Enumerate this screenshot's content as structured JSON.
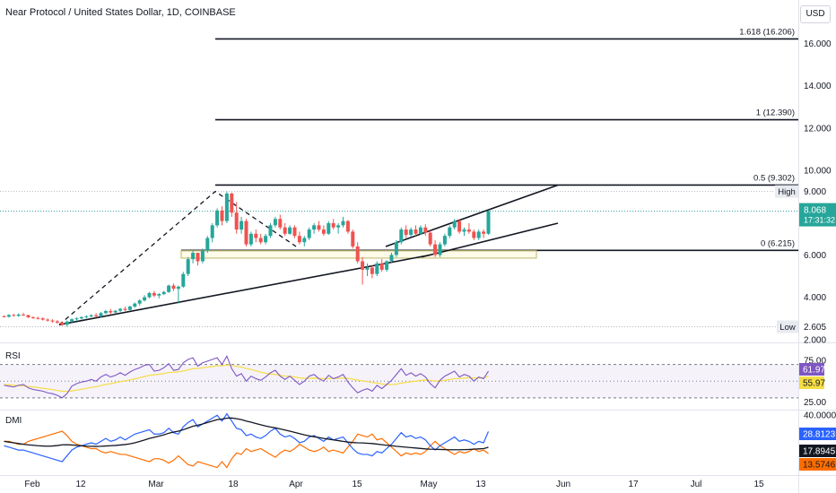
{
  "header": {
    "title": "Near Protocol / United States Dollar, 1D, COINBASE",
    "currency": "USD"
  },
  "colors": {
    "up": "#26a69a",
    "down": "#ef5350",
    "price_axis_bg": "#26a69a",
    "rsi_line": "#7e57c2",
    "rsi_ma": "#f5dd43",
    "dmi_plus": "#2962ff",
    "dmi_minus": "#ff6d00",
    "adx": "#131722"
  },
  "chart_data": [
    {
      "type": "candlestick",
      "title": "Near Protocol / United States Dollar, 1D, COINBASE",
      "xlabel": "",
      "ylabel": "",
      "x_ticks": [
        "Feb",
        "12",
        "Mar",
        "18",
        "Apr",
        "15",
        "May",
        "13",
        "Jun",
        "17",
        "Jul",
        "15"
      ],
      "y_ticks": [
        "16.000",
        "14.000",
        "12.000",
        "10.000",
        "6.000",
        "4.000",
        "2.000"
      ],
      "ylim": [
        1.95,
        17.2
      ],
      "last_price": "8.068",
      "countdown": "17:31:32",
      "high_label": "High",
      "high_value": "9.000",
      "low_label": "Low",
      "low_value": "2.605",
      "fib_levels": [
        {
          "label": "1.618 (16.206)",
          "value": 16.206
        },
        {
          "label": "1 (12.390)",
          "value": 12.39
        },
        {
          "label": "0.5 (9.302)",
          "value": 9.302
        },
        {
          "label": "0 (6.215)",
          "value": 6.215
        }
      ],
      "candles": [
        [
          3.1,
          3.14,
          3.05,
          3.08
        ],
        [
          3.08,
          3.2,
          3.04,
          3.16
        ],
        [
          3.16,
          3.22,
          3.1,
          3.12
        ],
        [
          3.12,
          3.24,
          3.08,
          3.18
        ],
        [
          3.18,
          3.26,
          3.12,
          3.15
        ],
        [
          3.15,
          3.18,
          3.02,
          3.05
        ],
        [
          3.05,
          3.1,
          2.98,
          3.02
        ],
        [
          3.02,
          3.08,
          2.95,
          3.0
        ],
        [
          3.0,
          3.05,
          2.9,
          2.94
        ],
        [
          2.94,
          3.0,
          2.85,
          2.9
        ],
        [
          2.9,
          2.96,
          2.8,
          2.86
        ],
        [
          2.86,
          2.92,
          2.75,
          2.8
        ],
        [
          2.8,
          2.86,
          2.65,
          2.7
        ],
        [
          2.7,
          2.9,
          2.61,
          2.85
        ],
        [
          2.85,
          3.0,
          2.8,
          2.96
        ],
        [
          2.96,
          3.05,
          2.9,
          3.0
        ],
        [
          3.0,
          3.1,
          2.95,
          3.06
        ],
        [
          3.06,
          3.15,
          3.0,
          3.1
        ],
        [
          3.1,
          3.2,
          3.05,
          3.15
        ],
        [
          3.15,
          3.25,
          3.05,
          3.1
        ],
        [
          3.1,
          3.3,
          3.05,
          3.25
        ],
        [
          3.25,
          3.4,
          3.2,
          3.35
        ],
        [
          3.35,
          3.45,
          3.2,
          3.28
        ],
        [
          3.28,
          3.4,
          3.22,
          3.36
        ],
        [
          3.36,
          3.5,
          3.3,
          3.45
        ],
        [
          3.45,
          3.55,
          3.35,
          3.4
        ],
        [
          3.4,
          3.6,
          3.38,
          3.56
        ],
        [
          3.56,
          3.75,
          3.5,
          3.7
        ],
        [
          3.7,
          3.9,
          3.6,
          3.85
        ],
        [
          3.85,
          4.1,
          3.8,
          4.0
        ],
        [
          4.0,
          4.25,
          3.95,
          4.2
        ],
        [
          4.2,
          4.3,
          4.0,
          4.08
        ],
        [
          4.08,
          4.2,
          3.95,
          4.15
        ],
        [
          4.15,
          4.3,
          4.1,
          4.25
        ],
        [
          4.25,
          4.6,
          4.2,
          4.55
        ],
        [
          4.55,
          4.65,
          4.3,
          4.4
        ],
        [
          4.4,
          4.55,
          3.7,
          4.5
        ],
        [
          4.5,
          5.2,
          4.45,
          5.1
        ],
        [
          5.1,
          5.9,
          5.0,
          5.8
        ],
        [
          5.8,
          6.2,
          5.6,
          6.1
        ],
        [
          6.1,
          6.1,
          5.5,
          5.7
        ],
        [
          5.7,
          6.3,
          5.6,
          6.2
        ],
        [
          6.2,
          6.9,
          6.1,
          6.8
        ],
        [
          6.8,
          7.5,
          6.6,
          7.4
        ],
        [
          7.4,
          8.2,
          7.3,
          8.1
        ],
        [
          8.1,
          8.3,
          7.4,
          7.6
        ],
        [
          7.6,
          9.0,
          7.5,
          8.9
        ],
        [
          8.9,
          8.95,
          7.8,
          8.0
        ],
        [
          8.0,
          8.5,
          7.0,
          7.2
        ],
        [
          7.2,
          7.8,
          7.0,
          7.6
        ],
        [
          7.6,
          7.7,
          6.4,
          6.5
        ],
        [
          6.5,
          7.1,
          6.4,
          7.0
        ],
        [
          7.0,
          7.2,
          6.6,
          6.8
        ],
        [
          6.8,
          7.0,
          6.5,
          6.6
        ],
        [
          6.6,
          7.0,
          6.5,
          6.9
        ],
        [
          6.9,
          7.5,
          6.8,
          7.4
        ],
        [
          7.4,
          7.8,
          7.3,
          7.7
        ],
        [
          7.7,
          7.9,
          7.2,
          7.3
        ],
        [
          7.3,
          7.5,
          6.9,
          7.0
        ],
        [
          7.0,
          7.4,
          6.95,
          7.3
        ],
        [
          7.3,
          7.4,
          6.8,
          6.9
        ],
        [
          6.9,
          7.1,
          6.5,
          6.6
        ],
        [
          6.6,
          6.9,
          6.4,
          6.8
        ],
        [
          6.8,
          7.3,
          6.7,
          7.2
        ],
        [
          7.2,
          7.5,
          7.0,
          7.4
        ],
        [
          7.4,
          7.6,
          7.1,
          7.2
        ],
        [
          7.2,
          7.4,
          6.9,
          7.0
        ],
        [
          7.0,
          7.6,
          6.95,
          7.5
        ],
        [
          7.5,
          7.7,
          7.2,
          7.3
        ],
        [
          7.3,
          7.5,
          7.0,
          7.4
        ],
        [
          7.4,
          7.8,
          7.3,
          7.6
        ],
        [
          7.6,
          7.65,
          7.0,
          7.1
        ],
        [
          7.1,
          7.2,
          6.3,
          6.4
        ],
        [
          6.4,
          6.6,
          5.6,
          5.7
        ],
        [
          5.7,
          5.9,
          4.6,
          5.3
        ],
        [
          5.3,
          5.6,
          5.0,
          5.4
        ],
        [
          5.4,
          5.5,
          4.9,
          5.1
        ],
        [
          5.1,
          5.7,
          5.0,
          5.6
        ],
        [
          5.6,
          5.8,
          5.2,
          5.3
        ],
        [
          5.3,
          5.75,
          5.2,
          5.7
        ],
        [
          5.7,
          6.1,
          5.6,
          6.0
        ],
        [
          6.0,
          6.7,
          5.9,
          6.6
        ],
        [
          6.6,
          7.3,
          6.5,
          7.2
        ],
        [
          7.2,
          7.4,
          6.8,
          6.95
        ],
        [
          6.95,
          7.3,
          6.85,
          7.2
        ],
        [
          7.2,
          7.4,
          6.9,
          7.0
        ],
        [
          7.0,
          7.4,
          6.95,
          7.3
        ],
        [
          7.3,
          7.45,
          6.9,
          7.05
        ],
        [
          7.05,
          7.15,
          6.4,
          6.5
        ],
        [
          6.5,
          6.7,
          5.9,
          6.0
        ],
        [
          6.0,
          6.6,
          5.9,
          6.5
        ],
        [
          6.5,
          7.0,
          6.4,
          6.9
        ],
        [
          6.9,
          7.4,
          6.8,
          7.3
        ],
        [
          7.3,
          7.7,
          7.2,
          7.6
        ],
        [
          7.6,
          7.7,
          7.0,
          7.1
        ],
        [
          7.1,
          7.3,
          6.9,
          7.2
        ],
        [
          7.2,
          7.5,
          7.0,
          7.1
        ],
        [
          7.1,
          7.2,
          6.7,
          6.8
        ],
        [
          6.8,
          7.2,
          6.7,
          7.1
        ],
        [
          7.1,
          7.2,
          6.8,
          7.0
        ],
        [
          7.0,
          8.1,
          6.95,
          8.068
        ]
      ]
    },
    {
      "type": "line",
      "title": "RSI",
      "ylim": [
        18,
        90
      ],
      "y_ticks": [
        "75.00",
        "25.00"
      ],
      "bands": [
        70,
        30
      ],
      "series": [
        {
          "key": "rsi",
          "values": [
            45,
            44,
            43,
            45,
            46,
            42,
            40,
            39,
            38,
            36,
            35,
            33,
            30,
            35,
            44,
            47,
            49,
            50,
            52,
            50,
            55,
            58,
            55,
            57,
            60,
            57,
            61,
            64,
            66,
            69,
            70,
            62,
            63,
            66,
            71,
            63,
            64,
            72,
            76,
            78,
            68,
            72,
            74,
            76,
            78,
            70,
            80,
            65,
            56,
            59,
            50,
            56,
            53,
            51,
            55,
            60,
            63,
            56,
            52,
            56,
            51,
            46,
            50,
            56,
            58,
            53,
            50,
            57,
            53,
            55,
            58,
            49,
            42,
            36,
            39,
            41,
            38,
            45,
            41,
            46,
            51,
            58,
            65,
            57,
            60,
            56,
            59,
            55,
            47,
            42,
            51,
            56,
            59,
            62,
            55,
            58,
            56,
            50,
            55,
            53,
            62
          ]
        },
        {
          "key": "rsi_ma",
          "values": [
            46,
            45.5,
            45,
            44.6,
            44.3,
            43.7,
            43,
            42.3,
            41.5,
            40.6,
            39.8,
            38.9,
            37.9,
            37.6,
            38.3,
            39.3,
            40.3,
            41.3,
            42.5,
            43.3,
            44.7,
            46,
            47,
            48.2,
            49.5,
            50.4,
            51.5,
            52.8,
            54.1,
            55.6,
            57,
            57.6,
            58.3,
            59.2,
            60.4,
            60.7,
            61.2,
            62.3,
            63.6,
            65,
            65.3,
            66,
            66.8,
            67.6,
            68.4,
            68.5,
            69.4,
            69,
            67.8,
            67,
            65.2,
            64,
            62.4,
            60.8,
            59.5,
            58.6,
            58,
            57,
            56.1,
            55.9,
            55.1,
            53.9,
            53.5,
            53.5,
            53.6,
            53.2,
            52.9,
            53.2,
            53.2,
            53.4,
            53.8,
            53.3,
            52.4,
            51.2,
            50.3,
            49.5,
            48.4,
            47.7,
            46.6,
            45.9,
            45.9,
            46.4,
            47.7,
            48.4,
            49.4,
            50,
            50.9,
            51.3,
            51,
            50.1,
            50.2,
            50.9,
            51.9,
            53,
            53.2,
            53.7,
            54.1,
            53.7,
            53.9,
            54,
            55.97
          ]
        }
      ],
      "value_labels": [
        "61.97",
        "55.97"
      ]
    },
    {
      "type": "line",
      "title": "DMI",
      "ylim": [
        0,
        42
      ],
      "y_ticks": [
        "40.0000"
      ],
      "series": [
        {
          "key": "di_plus",
          "values": [
            19,
            18,
            17,
            16,
            16,
            15,
            14,
            13,
            12,
            11,
            10,
            9,
            8,
            12,
            16,
            18,
            19,
            20,
            21,
            20,
            22,
            24,
            22,
            23,
            25,
            23,
            25,
            27,
            28,
            29,
            30,
            27,
            27,
            28,
            31,
            28,
            27,
            32,
            35,
            37,
            32,
            34,
            36,
            38,
            40,
            36,
            41,
            36,
            31,
            30,
            26,
            27,
            25,
            24,
            26,
            29,
            31,
            27,
            25,
            26,
            24,
            21,
            22,
            25,
            26,
            24,
            22,
            25,
            23,
            24,
            25,
            21,
            17,
            14,
            13,
            13,
            12,
            15,
            14,
            17,
            20,
            24,
            28,
            25,
            26,
            24,
            25,
            23,
            19,
            16,
            19,
            21,
            23,
            25,
            22,
            23,
            22,
            20,
            22,
            21,
            28.8
          ]
        },
        {
          "key": "di_minus",
          "values": [
            22,
            22,
            21,
            20,
            20,
            22,
            23,
            24,
            25,
            26,
            27,
            28,
            29,
            26,
            22,
            20,
            19,
            18,
            17,
            17,
            15,
            14,
            15,
            14,
            13,
            13,
            12,
            11,
            10,
            9,
            8,
            10,
            10,
            9,
            7,
            9,
            12,
            9,
            6,
            5,
            8,
            7,
            6,
            5,
            4,
            8,
            4,
            10,
            14,
            13,
            17,
            15,
            16,
            17,
            15,
            13,
            11,
            14,
            16,
            15,
            17,
            20,
            18,
            16,
            15,
            16,
            18,
            15,
            16,
            15,
            14,
            18,
            22,
            27,
            26,
            25,
            27,
            23,
            24,
            21,
            18,
            15,
            12,
            14,
            13,
            14,
            13,
            15,
            19,
            22,
            19,
            17,
            15,
            13,
            15,
            14,
            15,
            17,
            15,
            16,
            13.6
          ]
        },
        {
          "key": "adx",
          "values": [
            22,
            21.5,
            21,
            20.5,
            20,
            19.6,
            19.3,
            19,
            18.8,
            18.7,
            18.8,
            19.1,
            19.6,
            19.7,
            19.5,
            19.2,
            18.9,
            18.7,
            18.6,
            18.5,
            18.6,
            18.8,
            19,
            19.2,
            19.5,
            19.8,
            20.3,
            21,
            21.9,
            22.9,
            24,
            24.8,
            25.6,
            26.5,
            27.6,
            28.4,
            29,
            30,
            31.2,
            32.4,
            33.1,
            34,
            35,
            36,
            37,
            37.3,
            38,
            38.1,
            37.6,
            37,
            36,
            35.2,
            34.3,
            33.4,
            32.6,
            31.9,
            31.3,
            30.6,
            29.8,
            29,
            28.2,
            27.3,
            26.5,
            25.8,
            25.2,
            24.6,
            24,
            23.5,
            23,
            22.5,
            22,
            21.5,
            21.2,
            21,
            20.9,
            20.7,
            20.5,
            20.1,
            19.7,
            19.3,
            19,
            18.6,
            18.3,
            18,
            17.7,
            17.4,
            17.1,
            16.8,
            16.6,
            16.5,
            16.4,
            16.3,
            16.2,
            16.2,
            16.2,
            16.3,
            16.4,
            16.6,
            16.8,
            17,
            17.9
          ]
        }
      ],
      "value_labels": [
        "28.8123",
        "17.8945",
        "13.5746"
      ]
    }
  ]
}
